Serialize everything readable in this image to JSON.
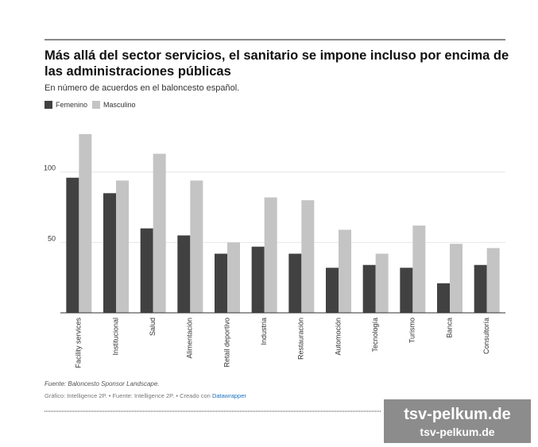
{
  "chart_data": {
    "type": "bar",
    "title": "Más allá del sector servicios, el sanitario se impone incluso por encima de las administraciones públicas",
    "subtitle": "En número de acuerdos en el baloncesto español.",
    "categories": [
      "Facility services",
      "Institucional",
      "Salud",
      "Alimentación",
      "Retail deportivo",
      "Industria",
      "Restauración",
      "Automoción",
      "Tecnología",
      "Turismo",
      "Banca",
      "Consultoría"
    ],
    "series": [
      {
        "name": "Femenino",
        "color": "#414141",
        "values": [
          96,
          85,
          60,
          55,
          42,
          47,
          42,
          32,
          34,
          32,
          21,
          34
        ]
      },
      {
        "name": "Masculino",
        "color": "#c4c4c4",
        "values": [
          127,
          94,
          113,
          94,
          50,
          82,
          80,
          59,
          42,
          62,
          49,
          46
        ]
      }
    ],
    "ylim": [
      0,
      132
    ],
    "yticks": [
      50,
      100
    ],
    "grid": true,
    "source": "Fuente: Baloncesto Sponsor Landscape.",
    "credit": "Gráfico: Intelligence 2P. • Fuente: Intelligence 2P. • Creado con",
    "credit_link": "Datawrapper"
  },
  "watermark": {
    "line1": "tsv-pelkum.de",
    "line2": "tsv-pelkum.de"
  }
}
